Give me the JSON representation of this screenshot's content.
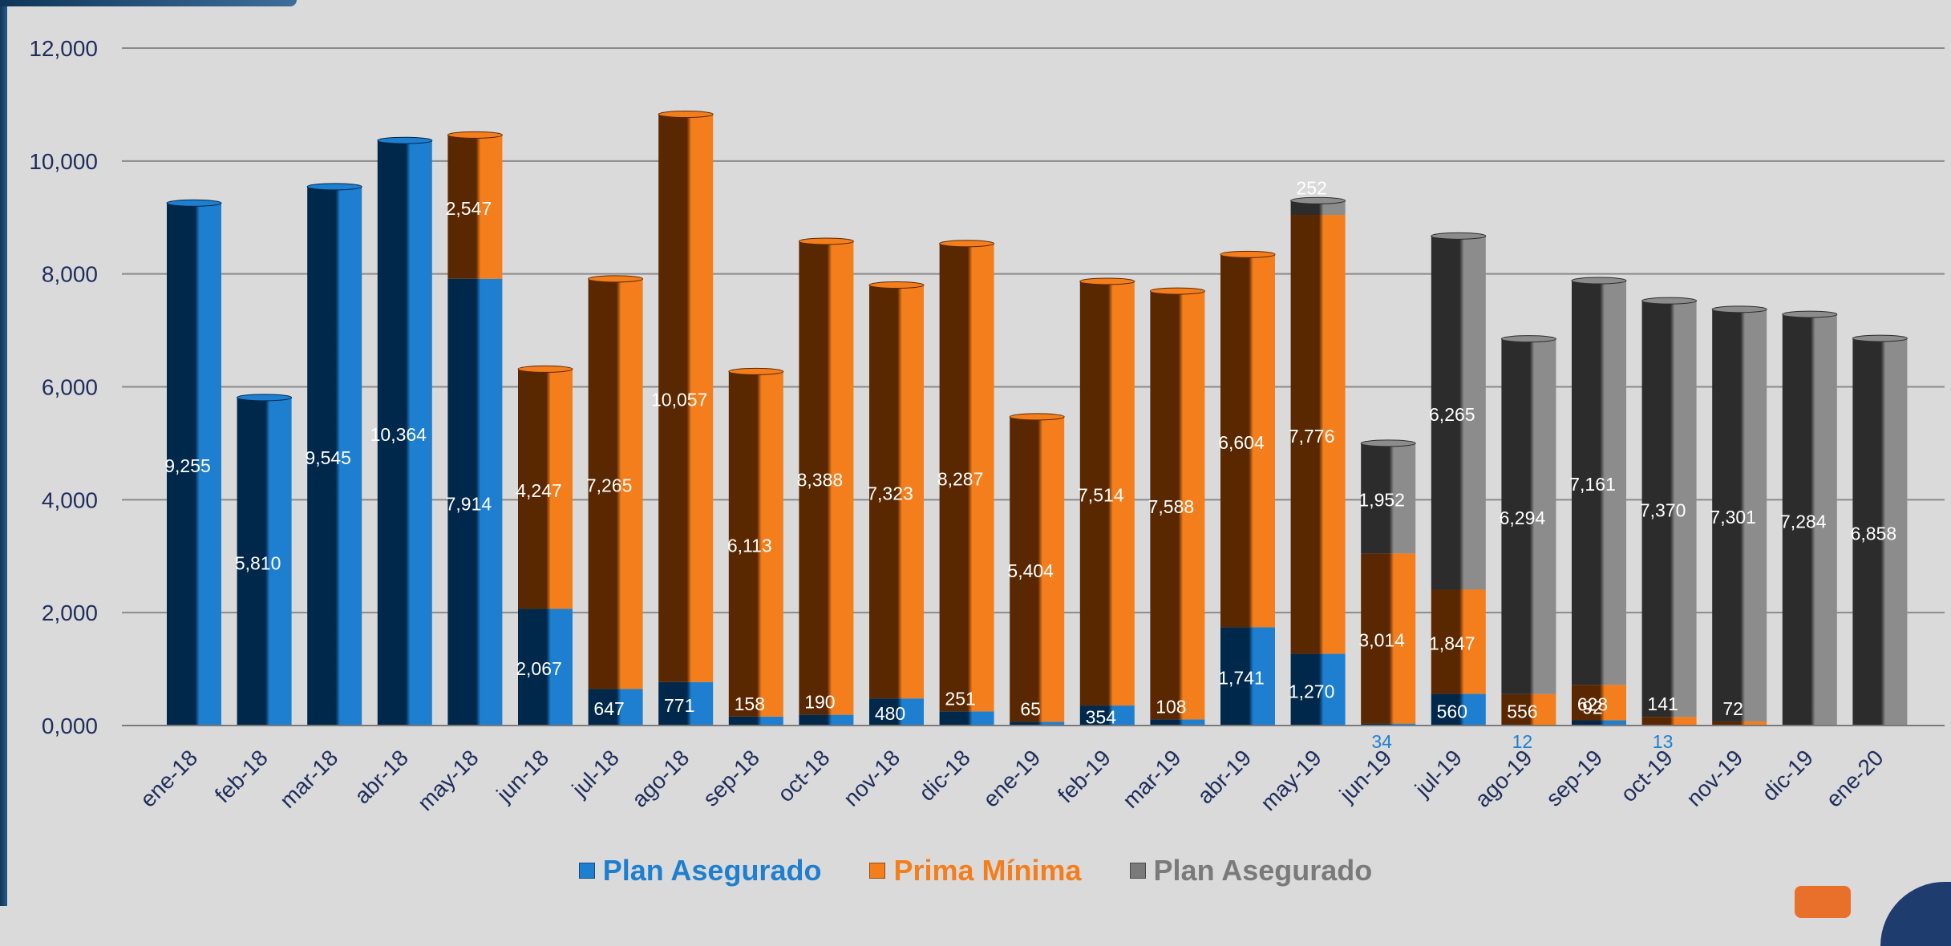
{
  "chart_data": {
    "type": "bar",
    "stacked": true,
    "categories": [
      "ene-18",
      "feb-18",
      "mar-18",
      "abr-18",
      "may-18",
      "jun-18",
      "jul-18",
      "ago-18",
      "sep-18",
      "oct-18",
      "nov-18",
      "dic-18",
      "ene-19",
      "feb-19",
      "mar-19",
      "abr-19",
      "may-19",
      "jun-19",
      "jul-19",
      "ago-19",
      "sep-19",
      "oct-19",
      "nov-19",
      "dic-19",
      "ene-20"
    ],
    "series": [
      {
        "name": "Plan Asegurado",
        "color": "#1e7fd0",
        "dark": "#00284a",
        "values": [
          9255,
          5810,
          9545,
          10364,
          7914,
          2067,
          647,
          771,
          158,
          190,
          480,
          251,
          65,
          354,
          108,
          1741,
          1270,
          34,
          560,
          0,
          92,
          13,
          0,
          0,
          0
        ],
        "labels": [
          "9,255",
          "5,810",
          "9,545",
          "10,364",
          "7,914",
          "2,067",
          "647",
          "771",
          "158",
          "190",
          "480",
          "251",
          "65",
          "354",
          "108",
          "1,741",
          "1,270",
          "34",
          "560",
          "",
          "92",
          "13",
          "",
          "",
          ""
        ]
      },
      {
        "name": "Prima Mínima",
        "color": "#f47e1c",
        "dark": "#5a2800",
        "values": [
          0,
          0,
          0,
          0,
          2547,
          4247,
          7265,
          10057,
          6113,
          8388,
          7323,
          8287,
          5404,
          7514,
          7588,
          6604,
          7776,
          3014,
          1847,
          556,
          628,
          141,
          72,
          0,
          0
        ],
        "labels": [
          "",
          "",
          "",
          "",
          "2,547",
          "4,247",
          "7,265",
          "10,057",
          "6,113",
          "8,388",
          "7,323",
          "8,287",
          "5,404",
          "7,514",
          "7,588",
          "6,604",
          "7,776",
          "3,014",
          "1,847",
          "556",
          "628",
          "141",
          "72",
          "",
          ""
        ]
      },
      {
        "name": "Plan Asegurado",
        "color": "#8c8c8c",
        "dark": "#2c2c2c",
        "values": [
          0,
          0,
          0,
          0,
          0,
          0,
          0,
          0,
          0,
          0,
          0,
          0,
          0,
          0,
          0,
          0,
          252,
          1952,
          6265,
          6294,
          7161,
          7370,
          7301,
          7284,
          6858
        ],
        "labels": [
          "",
          "",
          "",
          "",
          "",
          "",
          "",
          "",
          "",
          "",
          "",
          "",
          "",
          "",
          "",
          "",
          "252",
          "1,952",
          "6,265",
          "6,294",
          "7,161",
          "7,370",
          "7,301",
          "7,284",
          "6,858"
        ]
      }
    ],
    "ylim": [
      0,
      12000
    ],
    "yticks": [
      0,
      2000,
      4000,
      6000,
      8000,
      10000,
      12000
    ],
    "ytick_labels": [
      "0,000",
      "2,000",
      "4,000",
      "6,000",
      "8,000",
      "10,000",
      "12,000"
    ],
    "extra_labels": [
      {
        "category": "ago-19",
        "text": "12"
      }
    ],
    "legend_position": "bottom",
    "grid": true,
    "colors": {
      "axis_text": "#1f2d5c",
      "gridline": "#8a8a8a",
      "legend_blue": "#1e7fd0",
      "legend_orange": "#f47e1c",
      "legend_gray": "#7a7a7a"
    }
  },
  "legend": {
    "items": [
      {
        "label": "Plan Asegurado",
        "color": "#1e7fd0"
      },
      {
        "label": "Prima Mínima",
        "color": "#f47e1c"
      },
      {
        "label": "Plan Asegurado",
        "color": "#7a7a7a"
      }
    ]
  }
}
